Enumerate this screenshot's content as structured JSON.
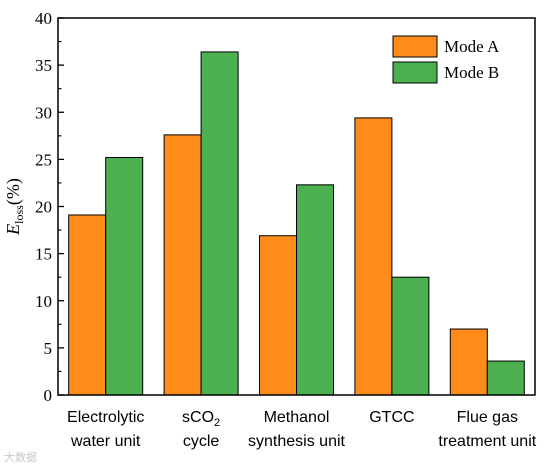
{
  "chart_data": {
    "type": "bar",
    "categories": [
      [
        "Electrolytic",
        "water unit"
      ],
      [
        "sCO2",
        "cycle"
      ],
      [
        "Methanol",
        "synthesis unit"
      ],
      [
        "GTCC"
      ],
      [
        "Flue gas",
        "treatment unit"
      ]
    ],
    "series": [
      {
        "name": "Mode A",
        "color": "#ff8c1a",
        "values": [
          19.1,
          27.6,
          16.9,
          29.4,
          7.0
        ]
      },
      {
        "name": "Mode B",
        "color": "#4caf50",
        "values": [
          25.2,
          36.4,
          22.3,
          12.5,
          3.6
        ]
      }
    ],
    "ylabel": {
      "symbol": "E",
      "subscript": "loss",
      "unit": "(%)"
    },
    "ylim": [
      0,
      40
    ],
    "yticks": [
      0,
      5,
      10,
      15,
      20,
      25,
      30,
      35,
      40
    ],
    "legend_position": "top-right",
    "grid": false
  },
  "watermark": "大数据"
}
